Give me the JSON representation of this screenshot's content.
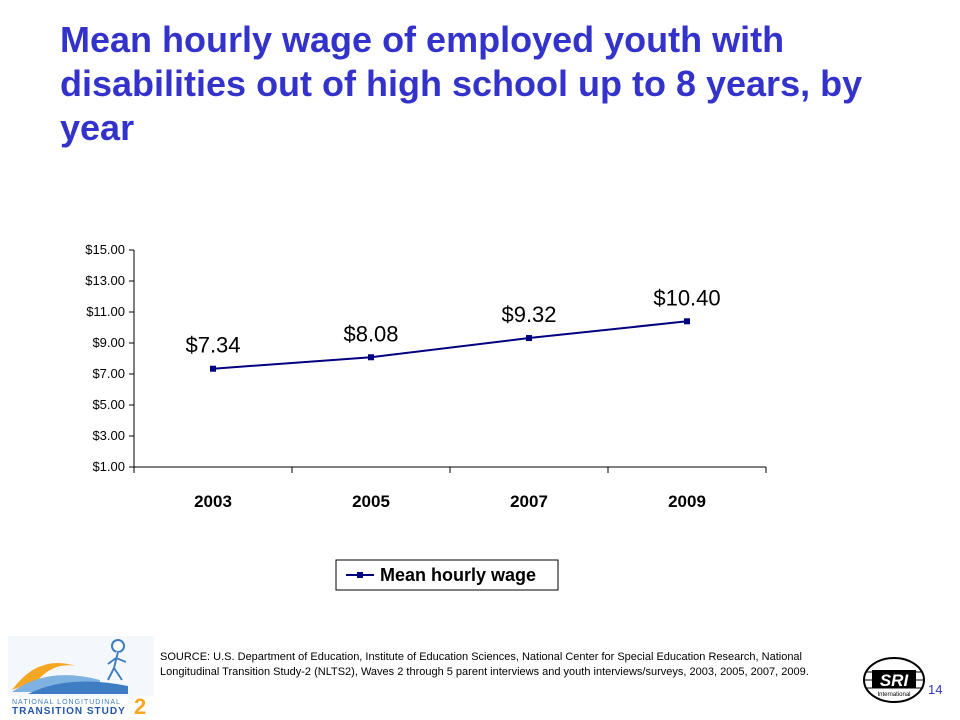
{
  "slide": {
    "title": "Mean hourly wage of employed youth with disabilities out of high school up to 8 years, by year",
    "source": "SOURCE: U.S. Department of Education, Institute of Education Sciences, National Center for Special Education Research, National Longitudinal Transition Study-2 (NLTS2), Waves 2 through 5 parent interviews and youth interviews/surveys, 2003, 2005, 2007, 2009.",
    "page_number": "14",
    "logo_left": {
      "line1": "NATIONAL LONGITUDINAL",
      "line2": "TRANSITION STUDY",
      "mark": "2"
    },
    "logo_right": {
      "text": "SRI",
      "subtext": "International"
    }
  },
  "chart_data": {
    "type": "line",
    "categories": [
      "2003",
      "2005",
      "2007",
      "2009"
    ],
    "series": [
      {
        "name": "Mean hourly wage",
        "values": [
          7.34,
          8.08,
          9.32,
          10.4
        ],
        "data_labels": [
          "$7.34",
          "$8.08",
          "$9.32",
          "$10.40"
        ],
        "color": "#000080"
      }
    ],
    "y_ticks": [
      "$15.00",
      "$13.00",
      "$11.00",
      "$9.00",
      "$7.00",
      "$5.00",
      "$3.00",
      "$1.00"
    ],
    "y_tick_values": [
      15,
      13,
      11,
      9,
      7,
      5,
      3,
      1
    ],
    "ylim": [
      1,
      15
    ],
    "grid": false,
    "legend_position": "bottom"
  }
}
